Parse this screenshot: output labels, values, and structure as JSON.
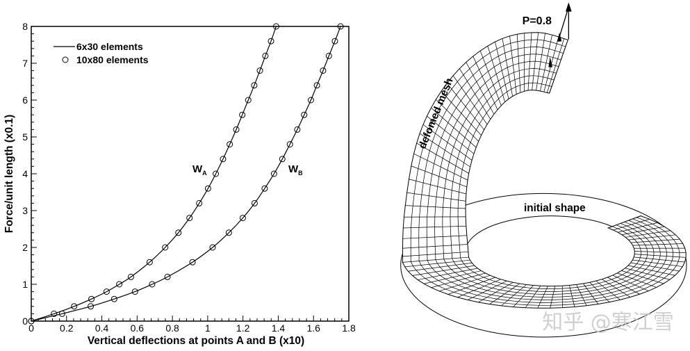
{
  "chart_data": {
    "type": "line",
    "xlabel": "Vertical deflections at points A and B (x10)",
    "ylabel": "Force/unit length (x0.1)",
    "xlim": [
      0,
      1.8
    ],
    "ylim": [
      0,
      8
    ],
    "x_ticks": [
      "0",
      "0.2",
      "0.4",
      "0.6",
      "0.8",
      "1",
      "1.2",
      "1.4",
      "1.6",
      "1.8"
    ],
    "y_ticks": [
      "0",
      "1",
      "2",
      "3",
      "4",
      "5",
      "6",
      "7",
      "8"
    ],
    "grid": false,
    "legend_placement": "top-left",
    "legend": [
      {
        "label": "6x30 elements",
        "style": "solid line"
      },
      {
        "label": "10x80 elements",
        "style": "open circle"
      }
    ],
    "series": [
      {
        "name": "W_A",
        "label_main": "W",
        "label_sub": "A",
        "x": [
          0,
          0.129,
          0.243,
          0.341,
          0.427,
          0.499,
          0.565,
          0.671,
          0.759,
          0.834,
          0.897,
          0.952,
          1.002,
          1.046,
          1.087,
          1.125,
          1.162,
          1.196,
          1.23,
          1.264,
          1.296,
          1.327,
          1.359,
          1.388
        ],
        "y": [
          0,
          0.2,
          0.4,
          0.6,
          0.8,
          1.0,
          1.2,
          1.6,
          2.0,
          2.4,
          2.8,
          3.2,
          3.6,
          4.0,
          4.4,
          4.8,
          5.2,
          5.6,
          6.0,
          6.4,
          6.8,
          7.2,
          7.6,
          8.0
        ]
      },
      {
        "name": "W_B",
        "label_main": "W",
        "label_sub": "B",
        "x": [
          0,
          0.175,
          0.337,
          0.47,
          0.588,
          0.685,
          0.772,
          0.914,
          1.028,
          1.12,
          1.199,
          1.266,
          1.323,
          1.376,
          1.423,
          1.466,
          1.508,
          1.547,
          1.585,
          1.619,
          1.654,
          1.687,
          1.721,
          1.753
        ],
        "y": [
          0,
          0.2,
          0.4,
          0.6,
          0.8,
          1.0,
          1.2,
          1.6,
          2.0,
          2.4,
          2.8,
          3.2,
          3.6,
          4.0,
          4.4,
          4.8,
          5.2,
          5.6,
          6.0,
          6.4,
          6.8,
          7.2,
          7.6,
          8.0
        ]
      }
    ]
  },
  "diagram": {
    "load_label": "P=0.8",
    "deformed_label": "defomed mesh",
    "initial_label": "initial shape"
  },
  "watermark": "知乎 @寒江雪"
}
